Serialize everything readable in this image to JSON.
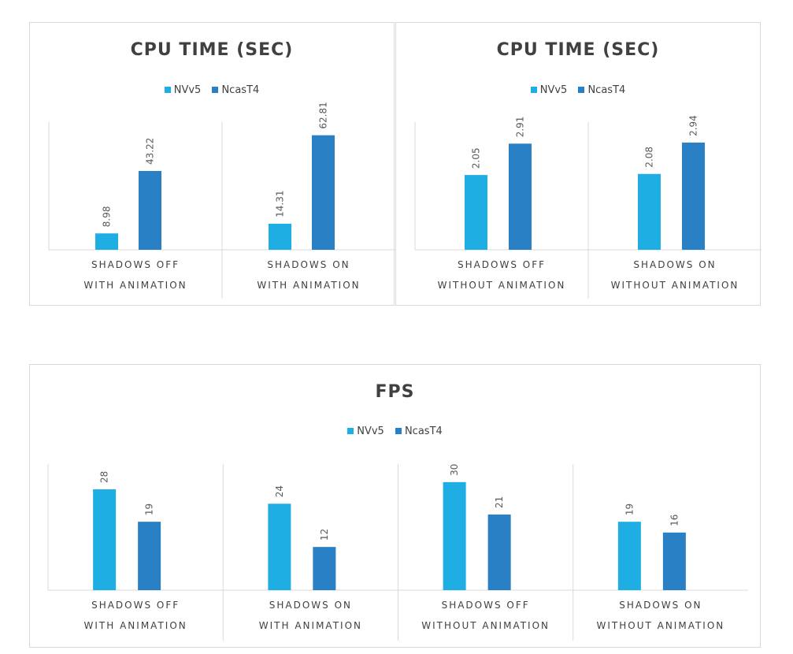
{
  "charts": [
    {
      "chart_data": {
        "type": "bar",
        "title": "CPU TIME (SEC)",
        "categories": [
          [
            "SHADOWS OFF",
            "WITH ANIMATION"
          ],
          [
            "SHADOWS ON",
            "WITH ANIMATION"
          ]
        ],
        "series": [
          {
            "name": "NVv5",
            "values": [
              8.98,
              14.31
            ]
          },
          {
            "name": "NcasT4",
            "values": [
              43.22,
              62.81
            ]
          }
        ],
        "value_labels": [
          [
            "8.98",
            "14.31"
          ],
          [
            "43.22",
            "62.81"
          ]
        ],
        "ylim": [
          0,
          70
        ],
        "legend": "top",
        "grid": false
      }
    },
    {
      "chart_data": {
        "type": "bar",
        "title": "CPU TIME (SEC)",
        "categories": [
          [
            "SHADOWS OFF",
            "WITHOUT ANIMATION"
          ],
          [
            "SHADOWS ON",
            "WITHOUT ANIMATION"
          ]
        ],
        "series": [
          {
            "name": "NVv5",
            "values": [
              2.05,
              2.08
            ]
          },
          {
            "name": "NcasT4",
            "values": [
              2.91,
              2.94
            ]
          }
        ],
        "value_labels": [
          [
            "2.05",
            "2.08"
          ],
          [
            "2.91",
            "2.94"
          ]
        ],
        "ylim": [
          0,
          3.5
        ],
        "legend": "top",
        "grid": false
      }
    },
    {
      "chart_data": {
        "type": "bar",
        "title": "FPS",
        "categories": [
          [
            "SHADOWS OFF",
            "WITH ANIMATION"
          ],
          [
            "SHADOWS ON",
            "WITH ANIMATION"
          ],
          [
            "SHADOWS OFF",
            "WITHOUT ANIMATION"
          ],
          [
            "SHADOWS ON",
            "WITHOUT ANIMATION"
          ]
        ],
        "series": [
          {
            "name": "NVv5",
            "values": [
              28,
              24,
              30,
              19
            ]
          },
          {
            "name": "NcasT4",
            "values": [
              19,
              12,
              21,
              16
            ]
          }
        ],
        "value_labels": [
          [
            "28",
            "24",
            "30",
            "19"
          ],
          [
            "19",
            "12",
            "21",
            "16"
          ]
        ],
        "ylim": [
          0,
          35
        ],
        "legend": "top",
        "grid": false
      }
    }
  ],
  "colors": {
    "NVv5": "#1eaee3",
    "NcasT4": "#2980c4",
    "axis": "#d9d9d9",
    "text": "#404040",
    "label": "#595959"
  }
}
